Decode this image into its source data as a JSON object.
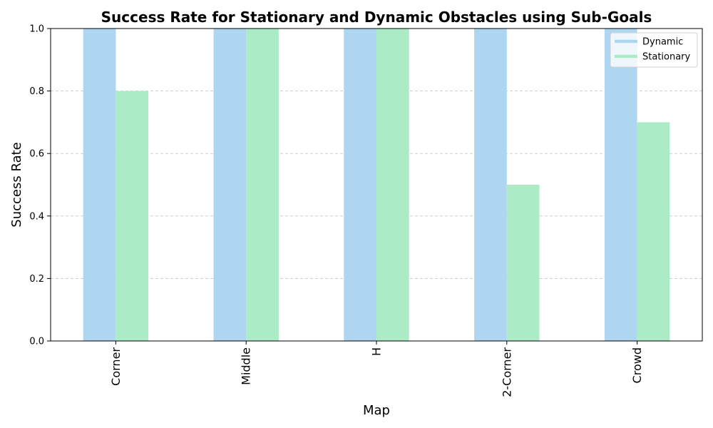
{
  "chart_data": {
    "type": "bar",
    "title": "Success Rate for Stationary and Dynamic Obstacles using Sub-Goals",
    "xlabel": "Map",
    "ylabel": "Success Rate",
    "categories": [
      "Corner",
      "Middle",
      "H",
      "2-Corner",
      "Crowd"
    ],
    "series": [
      {
        "name": "Dynamic",
        "values": [
          1.0,
          1.0,
          1.0,
          1.0,
          1.0
        ],
        "color": "#aed6f1"
      },
      {
        "name": "Stationary",
        "values": [
          0.8,
          1.0,
          1.0,
          0.5,
          0.7
        ],
        "color": "#abebc6"
      }
    ],
    "ylim": [
      0,
      1.0
    ],
    "yticks": [
      "0.0",
      "0.2",
      "0.4",
      "0.6",
      "0.8",
      "1.0"
    ],
    "ytick_values": [
      0,
      0.2,
      0.4,
      0.6,
      0.8,
      1.0
    ],
    "grid": "horizontal dashed",
    "legend_position": "top-right"
  }
}
